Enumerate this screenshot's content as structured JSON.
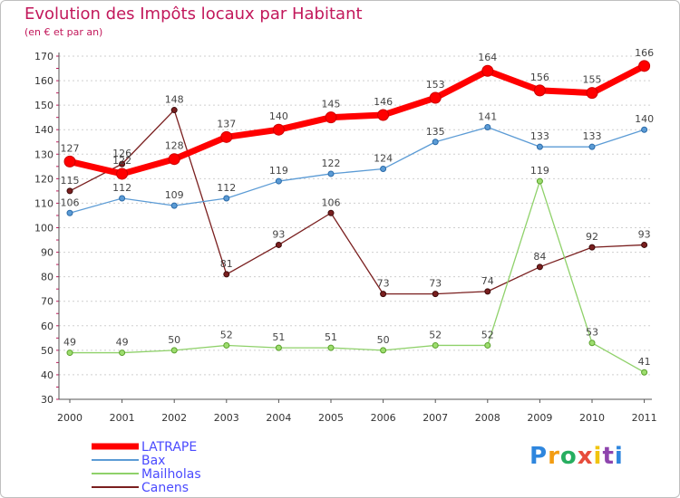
{
  "chart_data": {
    "type": "line",
    "title": "Evolution des Impôts locaux par Habitant",
    "subtitle": "(en € et par an)",
    "xlabel": "",
    "ylabel": "",
    "ylim": [
      30,
      170
    ],
    "yticks": [
      30,
      40,
      50,
      60,
      70,
      80,
      90,
      100,
      110,
      120,
      130,
      140,
      150,
      160,
      170
    ],
    "x": [
      "2000",
      "2001",
      "2002",
      "2003",
      "2004",
      "2005",
      "2006",
      "2007",
      "2008",
      "2009",
      "2010",
      "2011"
    ],
    "grid": "horizontal dashed",
    "legend_position": "bottom-left",
    "series": [
      {
        "name": "LATRAPE",
        "color": "#ff0000",
        "values": [
          127,
          122,
          128,
          137,
          140,
          145,
          146,
          153,
          164,
          156,
          155,
          166
        ]
      },
      {
        "name": "Bax",
        "color": "#5b9bd5",
        "values": [
          106,
          112,
          109,
          112,
          119,
          122,
          124,
          135,
          141,
          133,
          133,
          140
        ]
      },
      {
        "name": "Mailholas",
        "color": "#8fd16a",
        "values": [
          49,
          49,
          50,
          52,
          51,
          51,
          50,
          52,
          52,
          119,
          53,
          41
        ]
      },
      {
        "name": "Canens",
        "color": "#7a1f1f",
        "values": [
          115,
          126,
          148,
          81,
          93,
          106,
          73,
          73,
          74,
          84,
          92,
          93
        ]
      }
    ]
  },
  "brand": {
    "letters": [
      "P",
      "r",
      "o",
      "x",
      "i",
      "t",
      "i"
    ],
    "colors": [
      "#2e86de",
      "#f39c12",
      "#27ae60",
      "#e74c3c",
      "#f1c40f",
      "#8e44ad",
      "#2e86de"
    ]
  }
}
